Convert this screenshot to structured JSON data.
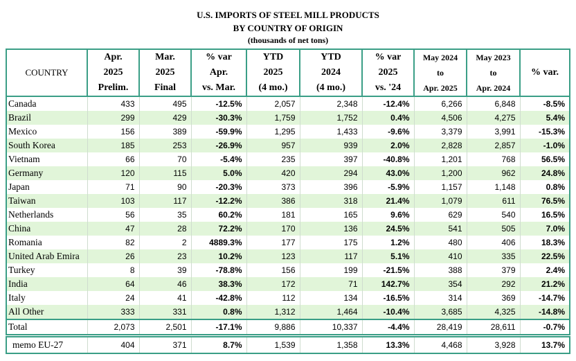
{
  "header": {
    "title": "U.S. IMPORTS OF STEEL MILL PRODUCTS",
    "subtitle": "BY COUNTRY OF ORIGIN",
    "units": "(thousands of net tons)"
  },
  "table": {
    "columns": [
      [
        "COUNTRY"
      ],
      [
        "Apr.",
        "2025",
        "Prelim."
      ],
      [
        "Mar.",
        "2025",
        "Final"
      ],
      [
        "% var",
        "Apr.",
        "vs. Mar."
      ],
      [
        "YTD",
        "2025",
        "(4 mo.)"
      ],
      [
        "YTD",
        "2024",
        "(4 mo.)"
      ],
      [
        "% var",
        "2025",
        "vs. '24"
      ],
      [
        "May 2024",
        "to",
        "Apr. 2025"
      ],
      [
        "May 2023",
        "to",
        "Apr. 2024"
      ],
      [
        "% var."
      ]
    ],
    "rows": [
      [
        "Canada",
        "433",
        "495",
        "-12.5%",
        "2,057",
        "2,348",
        "-12.4%",
        "6,266",
        "6,848",
        "-8.5%"
      ],
      [
        "Brazil",
        "299",
        "429",
        "-30.3%",
        "1,759",
        "1,752",
        "0.4%",
        "4,506",
        "4,275",
        "5.4%"
      ],
      [
        "Mexico",
        "156",
        "389",
        "-59.9%",
        "1,295",
        "1,433",
        "-9.6%",
        "3,379",
        "3,991",
        "-15.3%"
      ],
      [
        "South Korea",
        "185",
        "253",
        "-26.9%",
        "957",
        "939",
        "2.0%",
        "2,828",
        "2,857",
        "-1.0%"
      ],
      [
        "Vietnam",
        "66",
        "70",
        "-5.4%",
        "235",
        "397",
        "-40.8%",
        "1,201",
        "768",
        "56.5%"
      ],
      [
        "Germany",
        "120",
        "115",
        "5.0%",
        "420",
        "294",
        "43.0%",
        "1,200",
        "962",
        "24.8%"
      ],
      [
        "Japan",
        "71",
        "90",
        "-20.3%",
        "373",
        "396",
        "-5.9%",
        "1,157",
        "1,148",
        "0.8%"
      ],
      [
        "Taiwan",
        "103",
        "117",
        "-12.2%",
        "386",
        "318",
        "21.4%",
        "1,079",
        "611",
        "76.5%"
      ],
      [
        "Netherlands",
        "56",
        "35",
        "60.2%",
        "181",
        "165",
        "9.6%",
        "629",
        "540",
        "16.5%"
      ],
      [
        "China",
        "47",
        "28",
        "72.2%",
        "170",
        "136",
        "24.5%",
        "541",
        "505",
        "7.0%"
      ],
      [
        "Romania",
        "82",
        "2",
        "4889.3%",
        "177",
        "175",
        "1.2%",
        "480",
        "406",
        "18.3%"
      ],
      [
        "United Arab Emira",
        "26",
        "23",
        "10.2%",
        "123",
        "117",
        "5.1%",
        "410",
        "335",
        "22.5%"
      ],
      [
        "Turkey",
        "8",
        "39",
        "-78.8%",
        "156",
        "199",
        "-21.5%",
        "388",
        "379",
        "2.4%"
      ],
      [
        "India",
        "64",
        "46",
        "38.3%",
        "172",
        "71",
        "142.7%",
        "354",
        "292",
        "21.2%"
      ],
      [
        "Italy",
        "24",
        "41",
        "-42.8%",
        "112",
        "134",
        "-16.5%",
        "314",
        "369",
        "-14.7%"
      ],
      [
        "All Other",
        "333",
        "331",
        "0.8%",
        "1,312",
        "1,464",
        "-10.4%",
        "3,685",
        "4,325",
        "-14.8%"
      ]
    ],
    "total": [
      "Total",
      "2,073",
      "2,501",
      "-17.1%",
      "9,886",
      "10,337",
      "-4.4%",
      "28,419",
      "28,611",
      "-0.7%"
    ],
    "memo": [
      "memo EU-27",
      "404",
      "371",
      "8.7%",
      "1,539",
      "1,358",
      "13.3%",
      "4,468",
      "3,928",
      "13.7%"
    ]
  }
}
